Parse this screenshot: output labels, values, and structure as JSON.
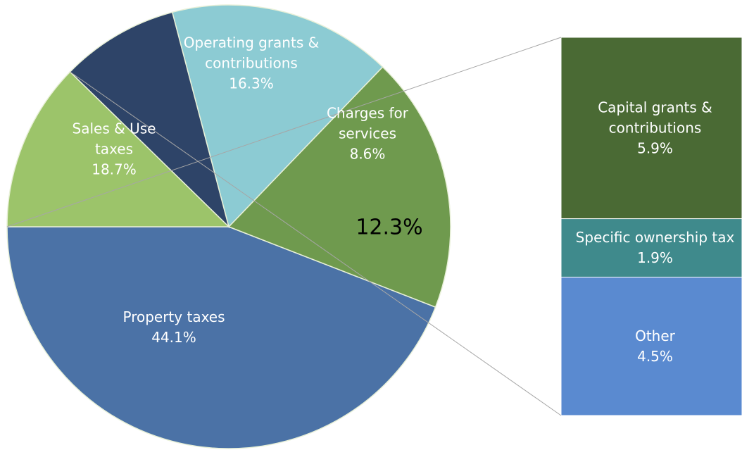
{
  "chart_data": {
    "type": "pie-of-bar",
    "categories": [
      "Property taxes",
      "Sales & Use taxes",
      "Operating grants & contributions",
      "Charges for services",
      null
    ],
    "values": [
      44.1,
      18.7,
      16.3,
      8.6,
      12.3
    ],
    "value_labels": [
      "44.1%",
      "18.7%",
      "16.3%",
      "8.6%",
      "12.3%"
    ],
    "colors": [
      "#4b72a6",
      "#6f9a4e",
      "#8ccbd3",
      "#2e4468",
      "#9cc46a"
    ],
    "startangle": 180,
    "counterclock": true,
    "bar": {
      "categories": [
        "Capital grants & contributions",
        "Specific ownership tax",
        "Other"
      ],
      "values": [
        5.9,
        1.9,
        4.5
      ],
      "value_labels": [
        "5.9%",
        "1.9%",
        "4.5%"
      ],
      "colors": [
        "#4a6a34",
        "#3f8a8c",
        "#5a8ad0"
      ]
    }
  }
}
